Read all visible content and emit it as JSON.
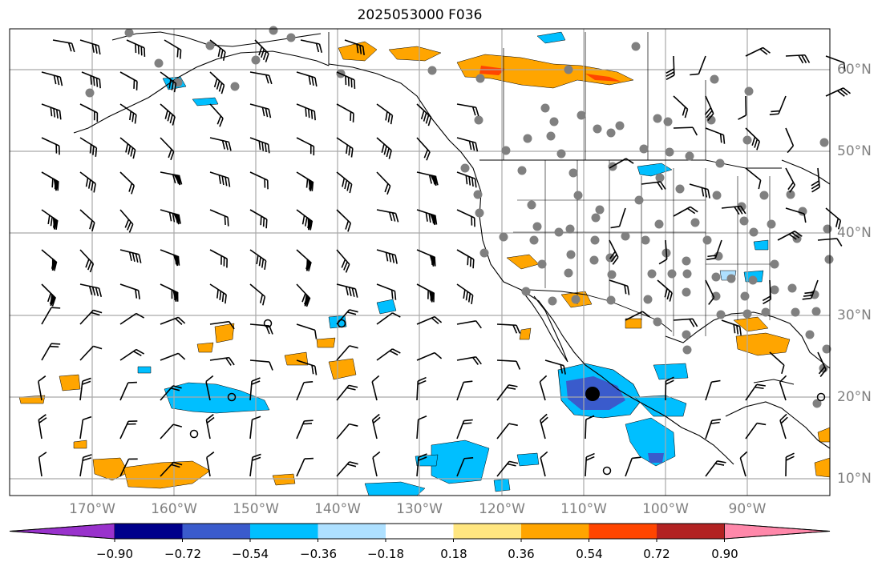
{
  "title": "2025053000 F036",
  "lat_labels": [
    "60°N",
    "50°N",
    "40°N",
    "30°N",
    "20°N",
    "10°N"
  ],
  "lon_labels": [
    "170°W",
    "160°W",
    "150°W",
    "140°W",
    "130°W",
    "120°W",
    "110°W",
    "100°W",
    "90°W"
  ],
  "colorbar": {
    "ticks": [
      "−0.90",
      "−0.72",
      "−0.54",
      "−0.36",
      "−0.18",
      "0.18",
      "0.36",
      "0.54",
      "0.72",
      "0.90"
    ],
    "colors": [
      "#9932cc",
      "#00008b",
      "#3a5bcc",
      "#00bfff",
      "#aee0ff",
      "#ffffff",
      "#ffe680",
      "#ffa500",
      "#ff4500",
      "#b22222",
      "#ff88aa"
    ]
  },
  "colors": {
    "grid": "#a9a9a9",
    "coast": "#000000",
    "station": "#808080",
    "barb": "#000000"
  }
}
